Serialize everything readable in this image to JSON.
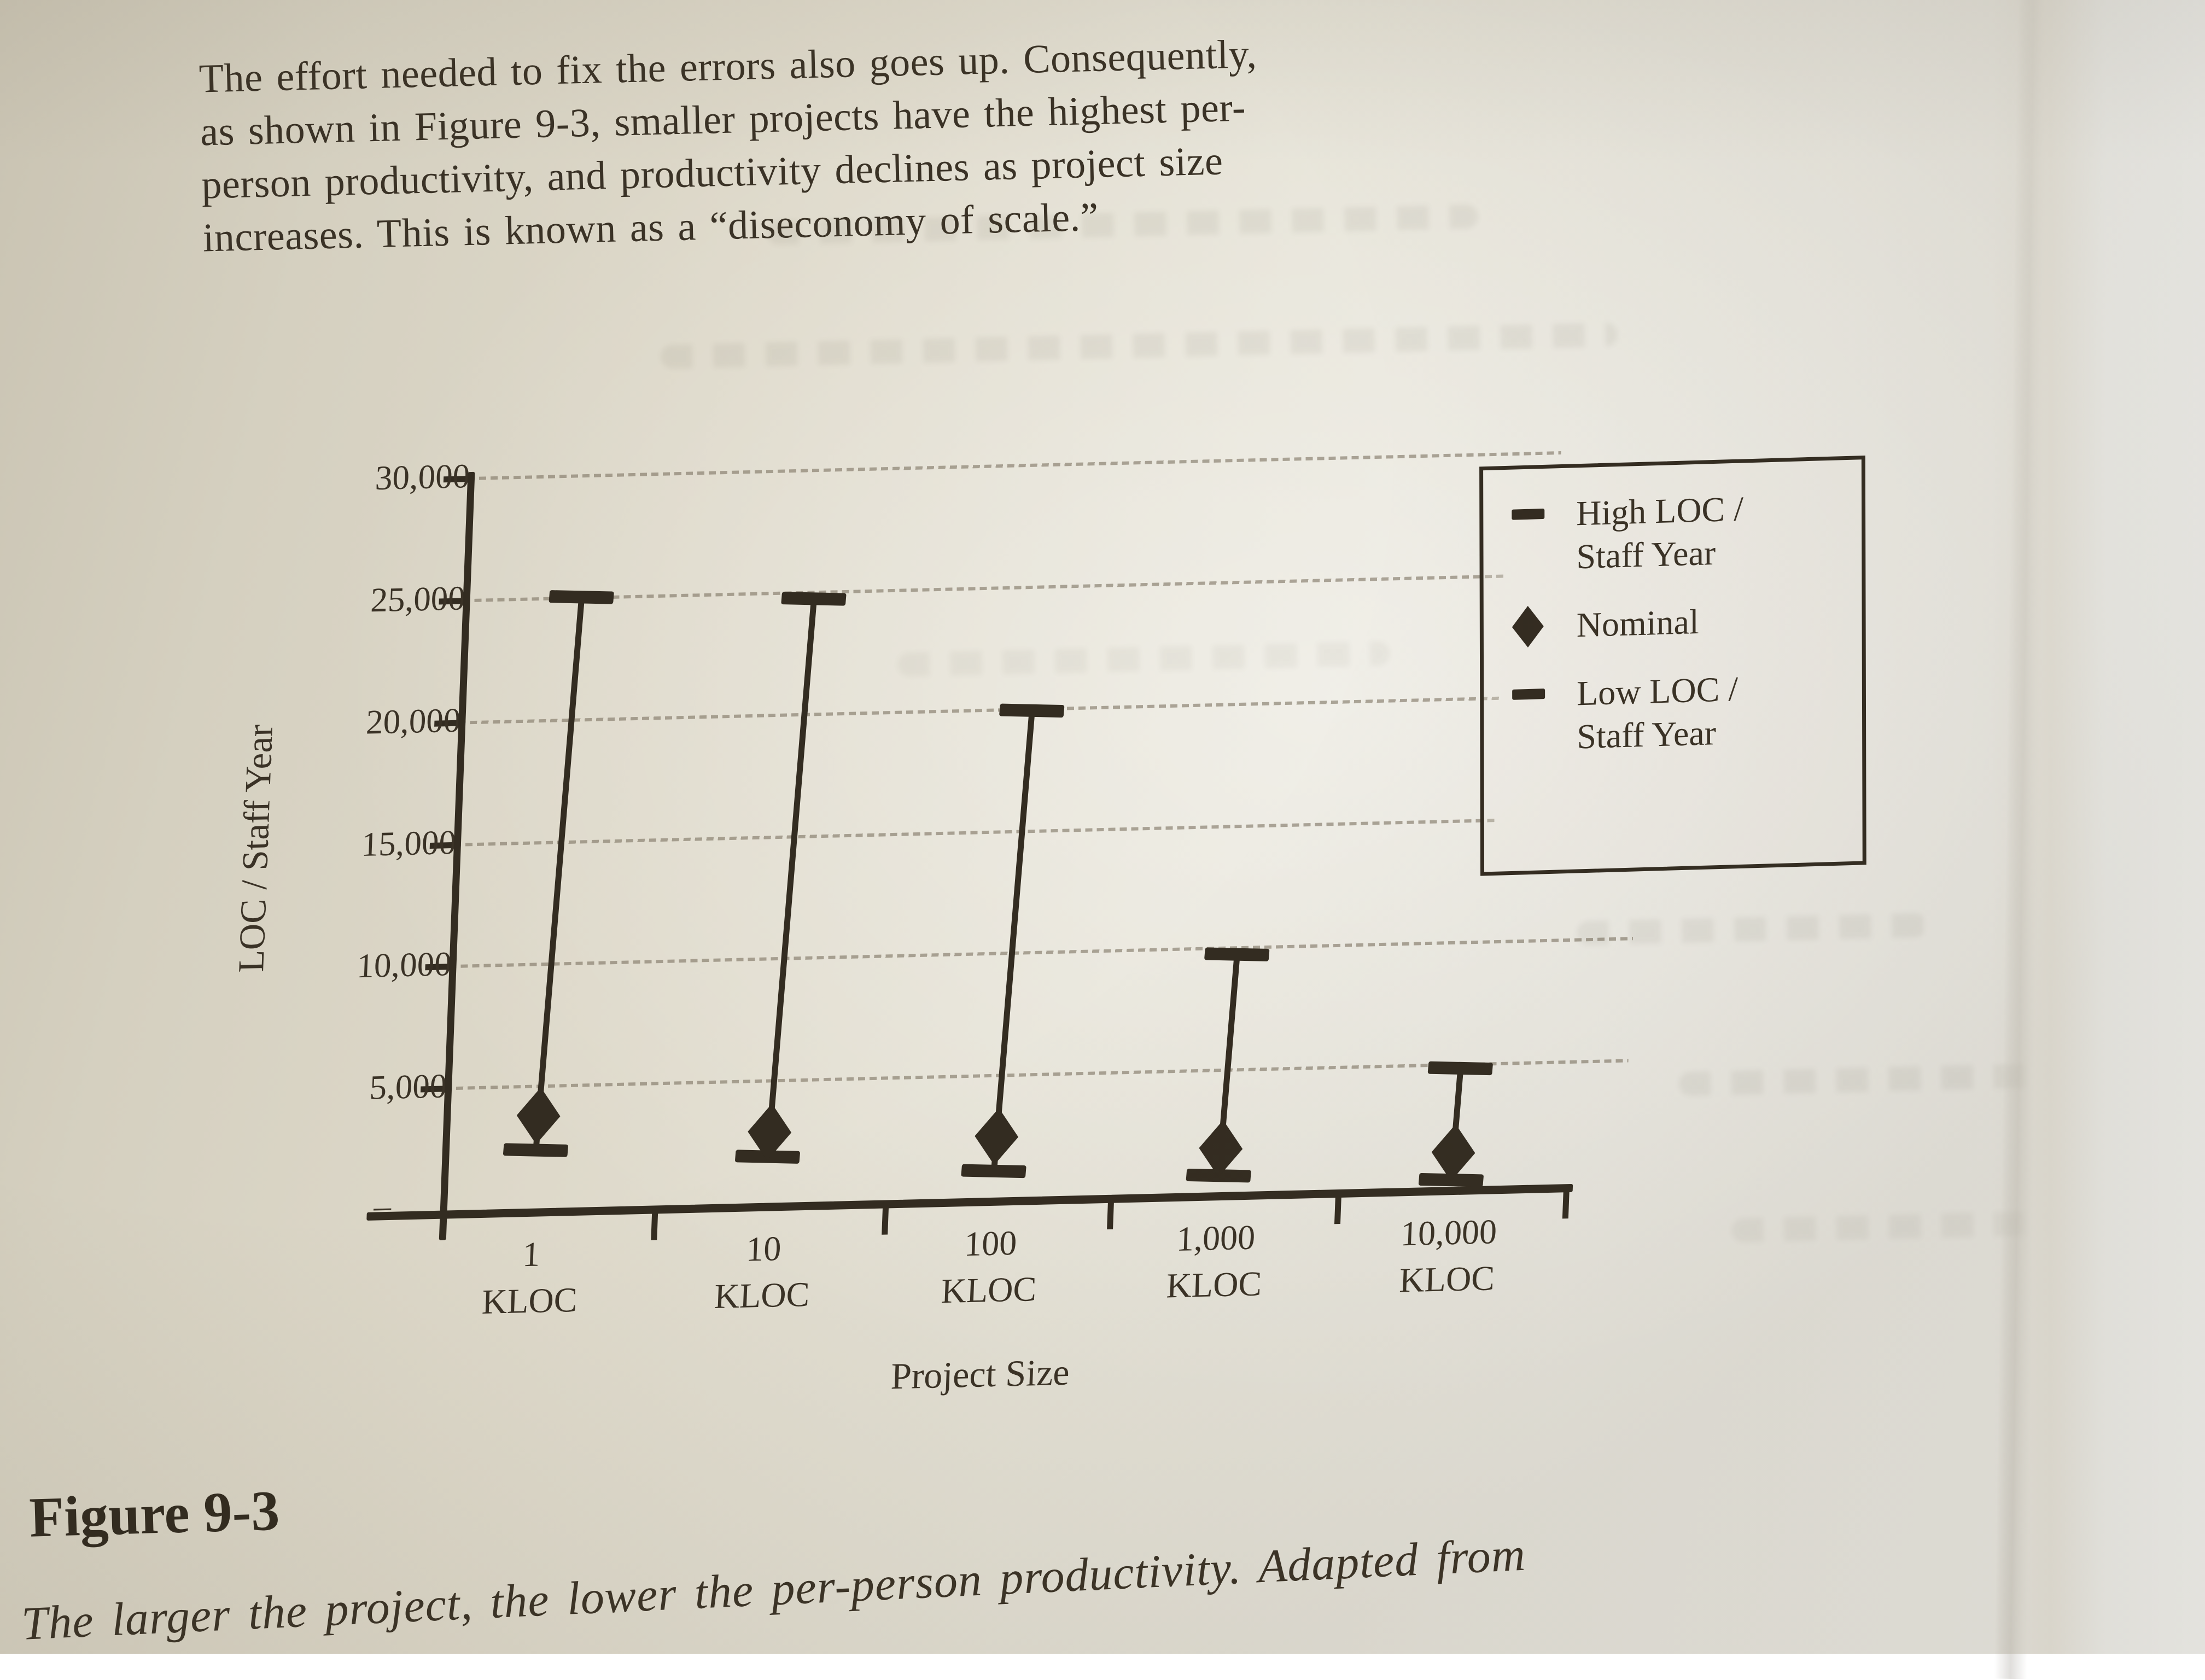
{
  "page": {
    "paragraph_lines": [
      "The effort needed to fix the errors also goes up. Consequently,",
      "as shown in Figure 9-3, smaller projects have the highest per-",
      "person productivity, and productivity declines as project size",
      "increases. This is known as a “diseconomy of scale.”"
    ],
    "figure_label": "Figure 9-3",
    "figure_caption": "The larger the project, the lower the per-person productivity. Adapted from"
  },
  "chart_data": {
    "type": "range-bar",
    "title": "",
    "xlabel": "Project Size",
    "ylabel": "LOC / Staff Year",
    "ylim": [
      0,
      30000
    ],
    "ytick_interval": 5000,
    "ytick_labels": [
      "30,000",
      "25,000",
      "20,000",
      "15,000",
      "10,000",
      "5,000"
    ],
    "origin_label": "–",
    "grid": "horizontal-dotted",
    "categories": [
      "1 KLOC",
      "10 KLOC",
      "100 KLOC",
      "1,000 KLOC",
      "10,000 KLOC"
    ],
    "category_label_lines": [
      [
        "1",
        "KLOC"
      ],
      [
        "10",
        "KLOC"
      ],
      [
        "100",
        "KLOC"
      ],
      [
        "1,000",
        "KLOC"
      ],
      [
        "10,000",
        "KLOC"
      ]
    ],
    "series": [
      {
        "name": "High LOC / Staff Year",
        "marker": "dash",
        "values": [
          25000,
          24700,
          19900,
          9700,
          4800
        ]
      },
      {
        "name": "Nominal",
        "marker": "diamond",
        "values": [
          3800,
          2900,
          2500,
          1800,
          1400
        ]
      },
      {
        "name": "Low LOC / Staff Year",
        "marker": "dash",
        "values": [
          2400,
          1900,
          1100,
          700,
          300
        ]
      }
    ],
    "legend": {
      "position": "top-right",
      "items": [
        {
          "symbol": "dash",
          "label": "High LOC /\nStaff Year"
        },
        {
          "symbol": "diamond",
          "label": "Nominal"
        },
        {
          "symbol": "dash",
          "label": "Low LOC /\nStaff Year"
        }
      ]
    }
  },
  "colors": {
    "paper": "#ddd8ca",
    "paper_dark": "#c9c3b2",
    "paper_light": "#ebe9e1",
    "page_edge_white": "#f3f3f0",
    "ink": "#362e22",
    "grid_line": "#7c7261"
  }
}
